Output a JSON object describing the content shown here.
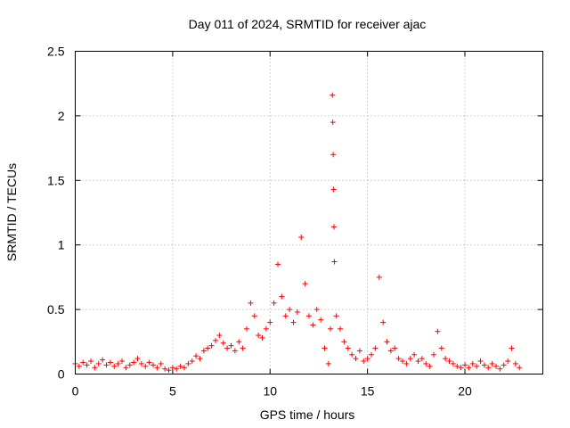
{
  "chart_data": {
    "type": "scatter",
    "title": "Day 011 of 2024, SRMTID for receiver ajac",
    "xlabel": "GPS time / hours",
    "ylabel": "SRMTID / TECUs",
    "xlim": [
      0,
      24
    ],
    "ylim": [
      0,
      2.5
    ],
    "grid": true,
    "marker": "+",
    "marker_color": "#ff0000",
    "x_ticks": [
      0,
      5,
      10,
      15,
      20
    ],
    "x_tick_labels": [
      "0",
      "5",
      "10",
      "15",
      "20"
    ],
    "y_ticks": [
      0,
      0.5,
      1,
      1.5,
      2,
      2.5
    ],
    "y_tick_labels": [
      "0",
      "0.5",
      "1",
      "1.5",
      "2",
      "2.5"
    ],
    "series": [
      {
        "name": "SRMTID",
        "points": [
          [
            0.0,
            0.08
          ],
          [
            0.2,
            0.06
          ],
          [
            0.4,
            0.09
          ],
          [
            0.6,
            0.07
          ],
          [
            0.8,
            0.1
          ],
          [
            1.0,
            0.05
          ],
          [
            1.2,
            0.08
          ],
          [
            1.4,
            0.11
          ],
          [
            1.6,
            0.07
          ],
          [
            1.8,
            0.09
          ],
          [
            2.0,
            0.06
          ],
          [
            2.2,
            0.08
          ],
          [
            2.4,
            0.1
          ],
          [
            2.6,
            0.05
          ],
          [
            2.8,
            0.07
          ],
          [
            3.0,
            0.09
          ],
          [
            3.2,
            0.12
          ],
          [
            3.4,
            0.08
          ],
          [
            3.6,
            0.06
          ],
          [
            3.8,
            0.09
          ],
          [
            4.0,
            0.07
          ],
          [
            4.2,
            0.05
          ],
          [
            4.4,
            0.08
          ],
          [
            4.6,
            0.04
          ],
          [
            4.8,
            0.03
          ],
          [
            5.0,
            0.05
          ],
          [
            5.2,
            0.04
          ],
          [
            5.4,
            0.06
          ],
          [
            5.6,
            0.05
          ],
          [
            5.8,
            0.08
          ],
          [
            6.0,
            0.1
          ],
          [
            6.2,
            0.14
          ],
          [
            6.4,
            0.12
          ],
          [
            6.6,
            0.18
          ],
          [
            6.8,
            0.2
          ],
          [
            7.0,
            0.22
          ],
          [
            7.2,
            0.26
          ],
          [
            7.4,
            0.3
          ],
          [
            7.6,
            0.24
          ],
          [
            7.8,
            0.2
          ],
          [
            8.0,
            0.22
          ],
          [
            8.2,
            0.18
          ],
          [
            8.4,
            0.25
          ],
          [
            8.6,
            0.2
          ],
          [
            8.8,
            0.35
          ],
          [
            9.0,
            0.55
          ],
          [
            9.2,
            0.45
          ],
          [
            9.4,
            0.3
          ],
          [
            9.6,
            0.28
          ],
          [
            9.8,
            0.35
          ],
          [
            10.0,
            0.4
          ],
          [
            10.2,
            0.55
          ],
          [
            10.4,
            0.85
          ],
          [
            10.6,
            0.6
          ],
          [
            10.8,
            0.45
          ],
          [
            11.0,
            0.5
          ],
          [
            11.2,
            0.4
          ],
          [
            11.4,
            0.48
          ],
          [
            11.6,
            1.06
          ],
          [
            11.8,
            0.7
          ],
          [
            12.0,
            0.45
          ],
          [
            12.2,
            0.38
          ],
          [
            12.4,
            0.5
          ],
          [
            12.6,
            0.42
          ],
          [
            12.8,
            0.2
          ],
          [
            13.0,
            0.08
          ],
          [
            13.1,
            0.35
          ],
          [
            13.2,
            2.16
          ],
          [
            13.22,
            1.95
          ],
          [
            13.24,
            1.7
          ],
          [
            13.26,
            1.43
          ],
          [
            13.28,
            1.14
          ],
          [
            13.3,
            0.87
          ],
          [
            13.4,
            0.45
          ],
          [
            13.6,
            0.35
          ],
          [
            13.8,
            0.25
          ],
          [
            14.0,
            0.2
          ],
          [
            14.2,
            0.15
          ],
          [
            14.4,
            0.12
          ],
          [
            14.6,
            0.18
          ],
          [
            14.8,
            0.1
          ],
          [
            15.0,
            0.12
          ],
          [
            15.2,
            0.15
          ],
          [
            15.4,
            0.2
          ],
          [
            15.6,
            0.75
          ],
          [
            15.8,
            0.4
          ],
          [
            16.0,
            0.25
          ],
          [
            16.2,
            0.18
          ],
          [
            16.4,
            0.2
          ],
          [
            16.6,
            0.12
          ],
          [
            16.8,
            0.1
          ],
          [
            17.0,
            0.08
          ],
          [
            17.2,
            0.12
          ],
          [
            17.4,
            0.15
          ],
          [
            17.6,
            0.1
          ],
          [
            17.8,
            0.12
          ],
          [
            18.0,
            0.08
          ],
          [
            18.2,
            0.06
          ],
          [
            18.4,
            0.15
          ],
          [
            18.6,
            0.33
          ],
          [
            18.8,
            0.2
          ],
          [
            19.0,
            0.12
          ],
          [
            19.2,
            0.1
          ],
          [
            19.4,
            0.08
          ],
          [
            19.6,
            0.06
          ],
          [
            19.8,
            0.05
          ],
          [
            20.0,
            0.07
          ],
          [
            20.2,
            0.05
          ],
          [
            20.4,
            0.08
          ],
          [
            20.6,
            0.06
          ],
          [
            20.8,
            0.1
          ],
          [
            21.0,
            0.07
          ],
          [
            21.2,
            0.05
          ],
          [
            21.4,
            0.08
          ],
          [
            21.6,
            0.06
          ],
          [
            21.8,
            0.04
          ],
          [
            22.0,
            0.07
          ],
          [
            22.2,
            0.1
          ],
          [
            22.4,
            0.2
          ],
          [
            22.6,
            0.08
          ],
          [
            22.8,
            0.05
          ]
        ]
      }
    ]
  }
}
